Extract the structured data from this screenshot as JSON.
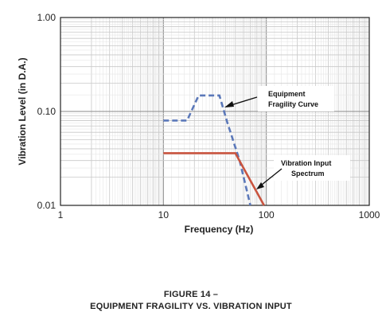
{
  "chart_data": {
    "type": "line",
    "xlabel": "Frequency (Hz)",
    "ylabel": "Vibration Level (in D.A.)",
    "xscale": "log",
    "yscale": "log",
    "xlim": [
      1,
      1000
    ],
    "ylim": [
      0.01,
      1.0
    ],
    "x_ticks": [
      {
        "value": 1,
        "label": "1"
      },
      {
        "value": 10,
        "label": "10"
      },
      {
        "value": 100,
        "label": "100"
      },
      {
        "value": 1000,
        "label": "1000"
      }
    ],
    "y_ticks": [
      {
        "value": 0.01,
        "label": "0.01"
      },
      {
        "value": 0.1,
        "label": "0.10"
      },
      {
        "value": 1.0,
        "label": "1.00"
      }
    ],
    "grid": true,
    "series": [
      {
        "name": "Equipment Fragility Curve",
        "color": "#5b78b9",
        "style": "dashed",
        "x": [
          10,
          17,
          22,
          35,
          42,
          55,
          70
        ],
        "y": [
          0.08,
          0.08,
          0.148,
          0.148,
          0.075,
          0.03,
          0.01
        ]
      },
      {
        "name": "Vibration Input Spectrum",
        "color": "#c9543f",
        "style": "solid",
        "x": [
          10,
          50,
          95
        ],
        "y": [
          0.036,
          0.036,
          0.01
        ]
      }
    ],
    "annotations": [
      {
        "lines": [
          "Equipment",
          "Fragility Curve"
        ],
        "target": "Equipment Fragility Curve"
      },
      {
        "lines": [
          "Vibration Input",
          "Spectrum"
        ],
        "target": "Vibration Input Spectrum"
      }
    ]
  },
  "caption": {
    "line1": "FIGURE 14 –",
    "line2": "EQUIPMENT FRAGILITY VS. VIBRATION INPUT"
  }
}
